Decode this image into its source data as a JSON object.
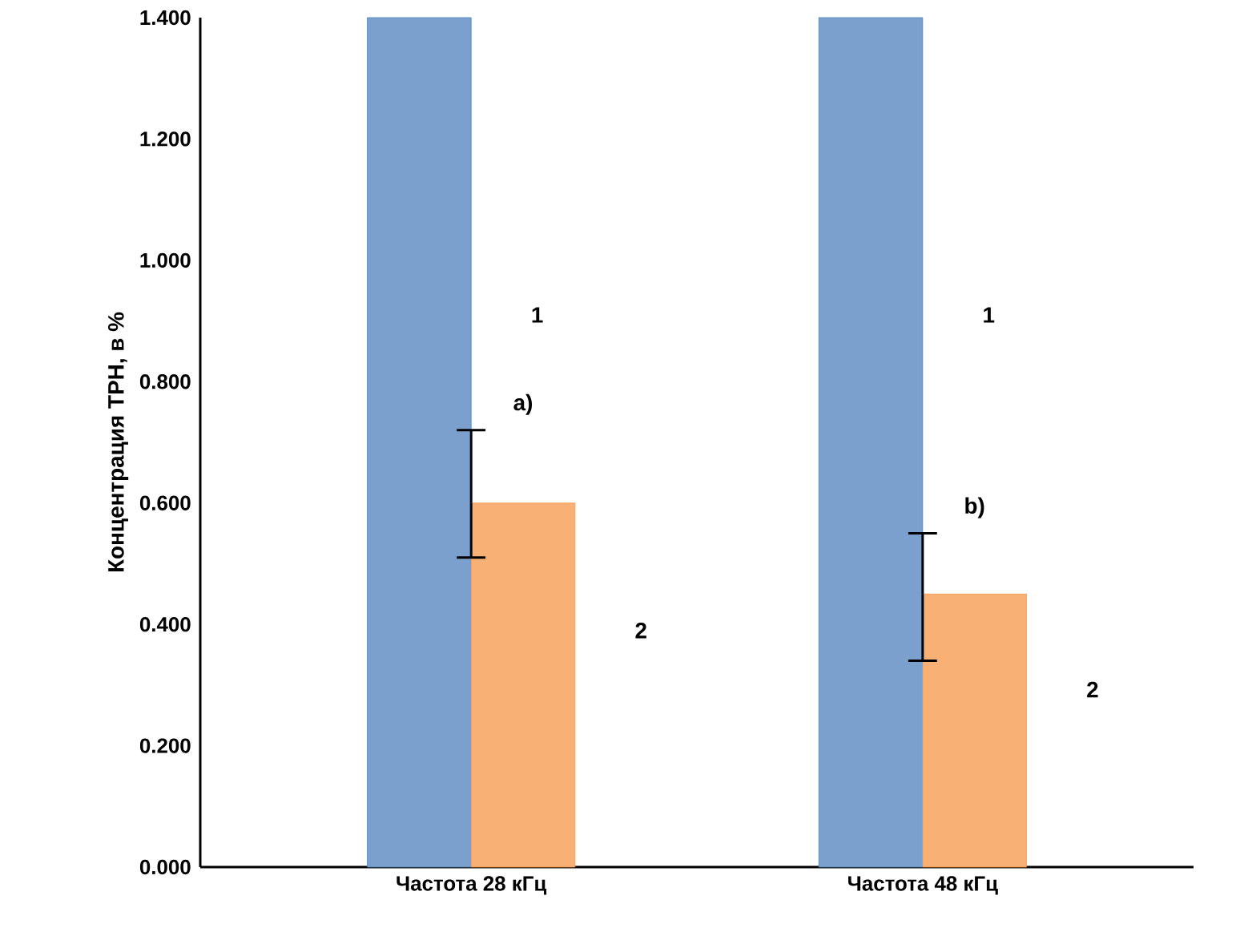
{
  "chart_data": {
    "type": "bar",
    "ylabel": "Концентрация ТРН, в %",
    "categories": [
      "Частота 28 кГц",
      "Частота 48 кГц"
    ],
    "series": [
      {
        "name": "1",
        "color": "#4f81bd",
        "values": [
          1.4,
          1.4
        ]
      },
      {
        "name": "2",
        "color": "#f79646",
        "values": [
          0.6,
          0.45
        ],
        "errors": [
          [
            0.51,
            0.72
          ],
          [
            0.34,
            0.55
          ]
        ]
      }
    ],
    "ylim": [
      0,
      1.4
    ],
    "yticks": [
      {
        "value": 0,
        "label": "0.000"
      },
      {
        "value": 0.2,
        "label": "0.200"
      },
      {
        "value": 0.4,
        "label": "0.400"
      },
      {
        "value": 0.6,
        "label": "0.600"
      },
      {
        "value": 0.8,
        "label": "0.800"
      },
      {
        "value": 1.0,
        "label": "1.000"
      },
      {
        "value": 1.2,
        "label": "1.200"
      },
      {
        "value": 1.4,
        "label": "1.400"
      }
    ],
    "annotations": [
      {
        "text": "a)",
        "x": "Частота 28 кГц",
        "y": 0.72
      },
      {
        "text": "b)",
        "x": "Частота 48 кГц",
        "y": 0.55
      }
    ],
    "grid": false,
    "legend": false
  }
}
